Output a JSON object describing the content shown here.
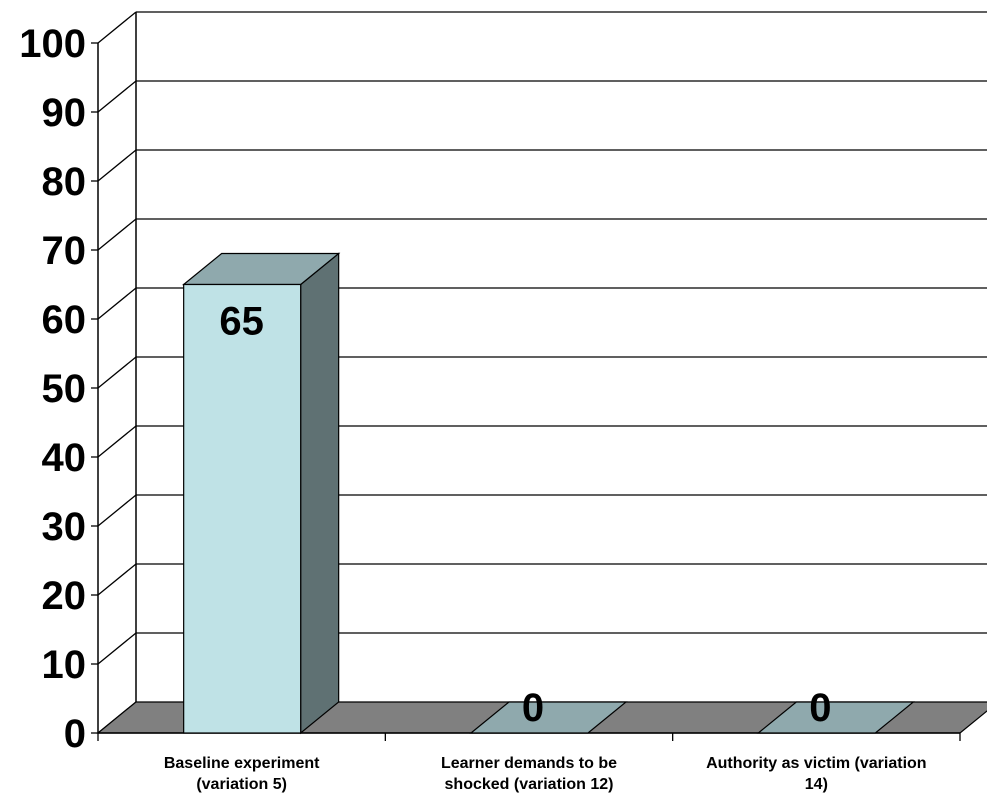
{
  "chart_data": {
    "type": "bar",
    "style": "3d",
    "categories": [
      [
        "Baseline experiment",
        "(variation 5)"
      ],
      [
        "Learner demands to be",
        "shocked (variation 12)"
      ],
      [
        "Authority as victim (variation",
        "14)"
      ]
    ],
    "values": [
      65,
      0,
      0
    ],
    "data_labels": [
      "65",
      "0",
      "0"
    ],
    "ylim": [
      0,
      100
    ],
    "yticks": [
      "0",
      "10",
      "20",
      "30",
      "40",
      "50",
      "60",
      "70",
      "80",
      "90",
      "100"
    ],
    "title": "",
    "xlabel": "",
    "ylabel": "",
    "grid": true,
    "colors": {
      "bar_front": "#bfe2e6",
      "bar_top": "#8fa9ad",
      "bar_side": "#5f7173",
      "floor": "#808080",
      "zero_bar": "#8fa9ad"
    }
  }
}
